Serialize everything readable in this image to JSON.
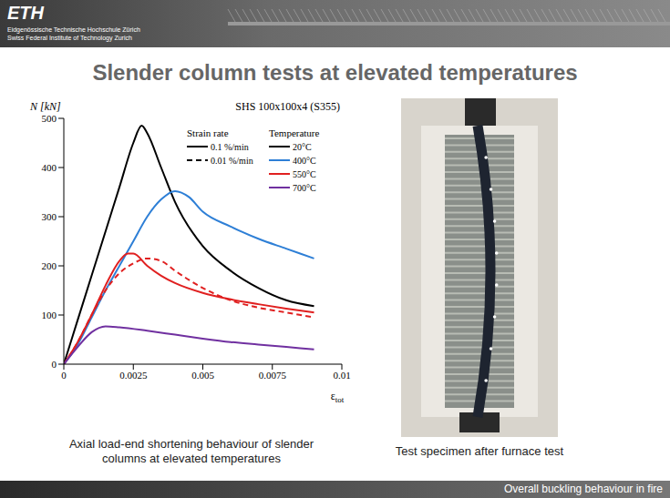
{
  "header": {
    "logo": "ETH",
    "institution_de": "Eidgenössische Technische Hochschule Zürich",
    "institution_en": "Swiss Federal Institute of Technology Zurich"
  },
  "title": "Slender column tests at elevated temperatures",
  "chart_caption": "Axial load-end shortening behaviour of slender columns at elevated temperatures",
  "photo_caption": "Test specimen after furnace test",
  "footer": "Overall buckling behaviour in fire",
  "chart_data": {
    "type": "line",
    "title": "SHS 100x100x4 (S355)",
    "y_label": "N [kN]",
    "x_label": "εtot",
    "xlim": [
      0,
      0.01
    ],
    "xticks": [
      0,
      0.0025,
      0.005,
      0.0075,
      0.01
    ],
    "ylim": [
      0,
      500
    ],
    "yticks": [
      0,
      100,
      200,
      300,
      400,
      500
    ],
    "grid": false,
    "legend": "upper right",
    "legend_headers": {
      "strain_rate": "Strain rate",
      "temperature": "Temperature"
    },
    "strain_rates": [
      {
        "label": "0.1 %/min",
        "line_style": "solid"
      },
      {
        "label": "0.01 %/min",
        "line_style": "dashed"
      }
    ],
    "series": [
      {
        "temperature": "20°C",
        "strain_rate": "0.1 %/min",
        "color": "#000000",
        "line_style": "solid",
        "x": [
          0,
          0.0005,
          0.001,
          0.0015,
          0.002,
          0.0025,
          0.0028,
          0.003,
          0.0035,
          0.004,
          0.005,
          0.006,
          0.007,
          0.008,
          0.009
        ],
        "values": [
          0,
          90,
          180,
          270,
          360,
          450,
          485,
          470,
          400,
          330,
          240,
          190,
          155,
          130,
          118
        ]
      },
      {
        "temperature": "400°C",
        "strain_rate": "0.1 %/min",
        "color": "#2e7fd6",
        "line_style": "solid",
        "x": [
          0,
          0.0005,
          0.001,
          0.0015,
          0.002,
          0.0025,
          0.003,
          0.0035,
          0.004,
          0.0045,
          0.005,
          0.006,
          0.007,
          0.008,
          0.009
        ],
        "values": [
          0,
          40,
          95,
          150,
          200,
          250,
          300,
          335,
          352,
          340,
          310,
          280,
          255,
          235,
          215
        ]
      },
      {
        "temperature": "550°C",
        "strain_rate": "0.1 %/min",
        "color": "#e02020",
        "line_style": "solid",
        "x": [
          0,
          0.0005,
          0.001,
          0.0015,
          0.002,
          0.0023,
          0.0025,
          0.003,
          0.0035,
          0.004,
          0.005,
          0.006,
          0.007,
          0.008,
          0.009
        ],
        "values": [
          0,
          45,
          100,
          160,
          210,
          225,
          225,
          200,
          180,
          165,
          145,
          132,
          122,
          113,
          105
        ]
      },
      {
        "temperature": "550°C",
        "strain_rate": "0.01 %/min",
        "color": "#e02020",
        "line_style": "dashed",
        "x": [
          0,
          0.0005,
          0.001,
          0.0015,
          0.002,
          0.0025,
          0.003,
          0.0035,
          0.004,
          0.005,
          0.006,
          0.007,
          0.008,
          0.009
        ],
        "values": [
          0,
          45,
          100,
          150,
          185,
          205,
          215,
          210,
          190,
          155,
          130,
          115,
          105,
          95
        ]
      },
      {
        "temperature": "700°C",
        "strain_rate": "0.1 %/min",
        "color": "#7030a0",
        "line_style": "solid",
        "x": [
          0,
          0.0005,
          0.001,
          0.0015,
          0.002,
          0.003,
          0.004,
          0.005,
          0.006,
          0.007,
          0.008,
          0.009
        ],
        "values": [
          0,
          35,
          65,
          77,
          75,
          68,
          60,
          52,
          45,
          40,
          35,
          30
        ]
      }
    ]
  }
}
